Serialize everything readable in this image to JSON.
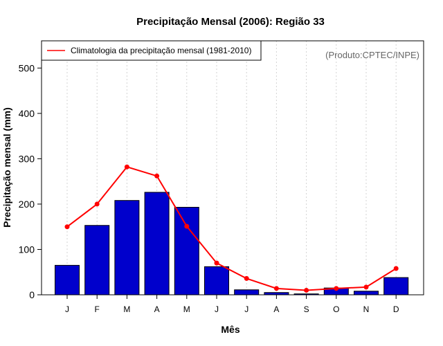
{
  "chart_data": {
    "type": "bar",
    "title": "Precipitação Mensal (2006): Região 33",
    "xlabel": "Mês",
    "ylabel": "Precipitação mensal (mm)",
    "ylim": [
      0,
      560
    ],
    "yticks": [
      0,
      100,
      200,
      300,
      400,
      500
    ],
    "categories": [
      "J",
      "F",
      "M",
      "A",
      "M",
      "J",
      "J",
      "A",
      "S",
      "O",
      "N",
      "D"
    ],
    "series": [
      {
        "name": "Precipitação mensal (2006)",
        "type": "bar",
        "color": "#0000CC",
        "values": [
          65,
          153,
          208,
          226,
          193,
          62,
          11,
          5,
          2,
          15,
          8,
          38
        ]
      },
      {
        "name": "Climatologia da precipitação mensal (1981-2010)",
        "type": "line",
        "color": "#FF0000",
        "values": [
          150,
          200,
          282,
          262,
          151,
          70,
          36,
          14,
          10,
          14,
          17,
          58
        ]
      }
    ],
    "legend": {
      "position": "top-left",
      "entries": [
        "Climatologia da precipitação mensal (1981-2010)"
      ]
    },
    "grid": "vertical-dotted",
    "credit": "(Produto:CPTEC/INPE)",
    "credit_color": "#666666"
  }
}
